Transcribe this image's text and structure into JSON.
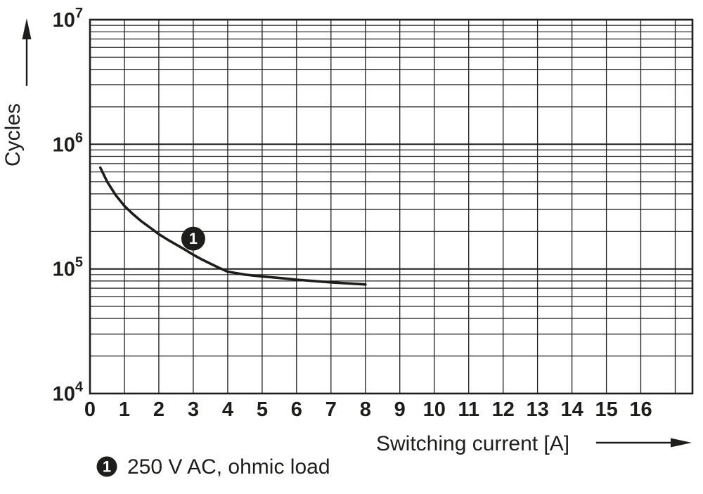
{
  "chart_data": {
    "type": "line",
    "title": "",
    "xlabel": "Switching current [A]",
    "ylabel": "Cycles",
    "x_ticks": [
      0,
      1,
      2,
      3,
      4,
      5,
      6,
      7,
      8,
      9,
      10,
      11,
      12,
      13,
      14,
      15,
      16
    ],
    "xlim": [
      0,
      17.5
    ],
    "x_grid_max": 17,
    "ylim_exp": [
      4,
      7
    ],
    "y_decades": [
      4,
      5,
      6,
      7
    ],
    "y_scale": "log",
    "grid": true,
    "legend_position": "below",
    "series": [
      {
        "name": "250 V AC, ohmic load",
        "marker": "1",
        "marker_at": [
          3,
          175000
        ],
        "points": [
          [
            0.3,
            650000
          ],
          [
            0.5,
            500000
          ],
          [
            0.75,
            390000
          ],
          [
            1,
            320000
          ],
          [
            1.25,
            275000
          ],
          [
            1.5,
            240000
          ],
          [
            1.75,
            214000
          ],
          [
            2,
            190000
          ],
          [
            2.25,
            172000
          ],
          [
            2.5,
            157000
          ],
          [
            2.75,
            143000
          ],
          [
            3,
            130000
          ],
          [
            3.25,
            119000
          ],
          [
            3.5,
            110000
          ],
          [
            3.75,
            102000
          ],
          [
            4,
            95000
          ],
          [
            4.5,
            90000
          ],
          [
            5,
            87000
          ],
          [
            5.5,
            84500
          ],
          [
            6,
            82000
          ],
          [
            6.5,
            80000
          ],
          [
            7,
            78000
          ],
          [
            7.5,
            76500
          ],
          [
            8,
            75000
          ]
        ]
      }
    ],
    "legend": [
      {
        "symbol": "1",
        "label": "250 V AC, ohmic load"
      }
    ]
  },
  "colors": {
    "foreground": "#1d1d1b",
    "grid": "#1d1d1b",
    "curve": "#1d1d1b",
    "marker_fill": "#1d1d1b",
    "marker_text": "#ffffff",
    "background": "#ffffff"
  }
}
